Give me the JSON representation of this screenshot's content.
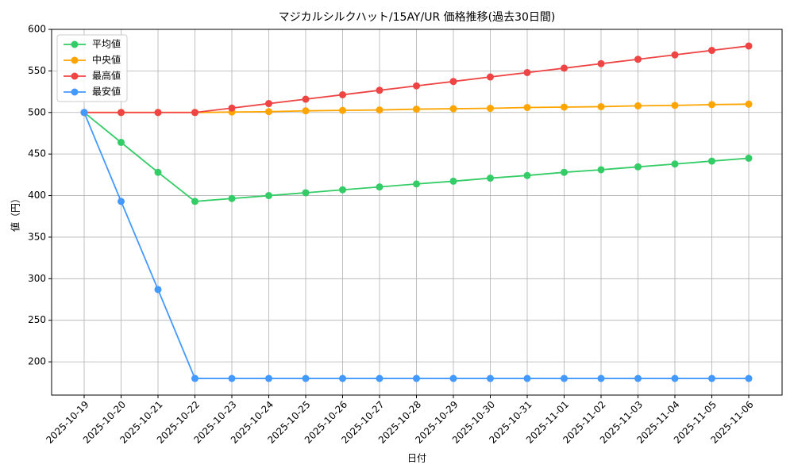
{
  "chart_data": {
    "type": "line",
    "title": "マジカルシルクハット/15AY/UR 価格推移(過去30日間)",
    "xlabel": "日付",
    "ylabel": "値（円）",
    "categories": [
      "2025-10-19",
      "2025-10-20",
      "2025-10-21",
      "2025-10-22",
      "2025-10-23",
      "2025-10-24",
      "2025-10-25",
      "2025-10-26",
      "2025-10-27",
      "2025-10-28",
      "2025-10-29",
      "2025-10-30",
      "2025-10-31",
      "2025-11-01",
      "2025-11-02",
      "2025-11-03",
      "2025-11-04",
      "2025-11-05",
      "2025-11-06"
    ],
    "series": [
      {
        "name": "平均値",
        "color": "#33cc66",
        "values": [
          500,
          464,
          428,
          393,
          396.5,
          400,
          403.4,
          407,
          410.4,
          414,
          417.3,
          421,
          424.2,
          428,
          431.1,
          434.6,
          438,
          441.5,
          445
        ]
      },
      {
        "name": "中央値",
        "color": "#ffa500",
        "values": [
          500,
          500,
          500,
          500,
          500.5,
          501,
          502,
          502.5,
          503,
          504,
          504.5,
          505,
          506,
          506.5,
          507,
          508,
          508.5,
          509.5,
          510
        ]
      },
      {
        "name": "最高値",
        "color": "#ef4444",
        "values": [
          500,
          500,
          500,
          500,
          505.3,
          510.7,
          516,
          521.3,
          526.7,
          532,
          537.3,
          542.7,
          548,
          553.3,
          558.7,
          564,
          569.3,
          574.7,
          580
        ]
      },
      {
        "name": "最安値",
        "color": "#4499ff",
        "values": [
          500,
          393,
          287,
          180,
          180,
          180,
          180,
          180,
          180,
          180,
          180,
          180,
          180,
          180,
          180,
          180,
          180,
          180,
          180
        ]
      }
    ],
    "ylim": [
      160,
      600
    ],
    "yticks": [
      200,
      250,
      300,
      350,
      400,
      450,
      500,
      550,
      600
    ],
    "grid": true,
    "legend": "upper left"
  }
}
